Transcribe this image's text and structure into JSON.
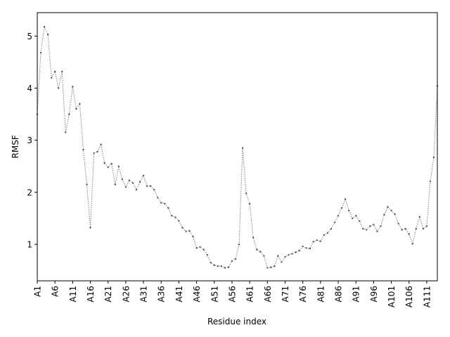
{
  "chart_data": {
    "type": "line",
    "xlabel": "Residue index",
    "ylabel": "RMSF",
    "ylim": [
      0.3,
      5.45
    ],
    "yticks": [
      1,
      2,
      3,
      4,
      5
    ],
    "grid": false,
    "series_color": "#808080",
    "x_tick_labels": [
      "A1",
      "A6",
      "A11",
      "A16",
      "A21",
      "A26",
      "A31",
      "A36",
      "A41",
      "A46",
      "A51",
      "A56",
      "A61",
      "A66",
      "A71",
      "A76",
      "A81",
      "A86",
      "A91",
      "A96",
      "A101",
      "A106",
      "A111"
    ],
    "values": [
      3.5,
      4.68,
      5.18,
      5.03,
      4.2,
      4.32,
      4.0,
      4.32,
      3.15,
      3.5,
      4.03,
      3.6,
      3.7,
      2.82,
      2.15,
      1.32,
      2.75,
      2.78,
      2.92,
      2.56,
      2.48,
      2.55,
      2.15,
      2.5,
      2.25,
      2.1,
      2.23,
      2.18,
      2.05,
      2.2,
      2.32,
      2.12,
      2.12,
      2.05,
      1.9,
      1.8,
      1.78,
      1.7,
      1.55,
      1.52,
      1.45,
      1.32,
      1.25,
      1.26,
      1.15,
      0.93,
      0.95,
      0.9,
      0.8,
      0.65,
      0.6,
      0.58,
      0.58,
      0.55,
      0.56,
      0.68,
      0.72,
      1.0,
      2.85,
      1.98,
      1.78,
      1.13,
      0.9,
      0.86,
      0.78,
      0.55,
      0.56,
      0.58,
      0.78,
      0.66,
      0.76,
      0.8,
      0.82,
      0.85,
      0.88,
      0.96,
      0.93,
      0.92,
      1.05,
      1.08,
      1.06,
      1.18,
      1.22,
      1.3,
      1.42,
      1.55,
      1.7,
      1.87,
      1.65,
      1.5,
      1.55,
      1.45,
      1.3,
      1.28,
      1.35,
      1.38,
      1.25,
      1.35,
      1.57,
      1.72,
      1.65,
      1.58,
      1.4,
      1.28,
      1.3,
      1.2,
      1.01,
      1.3,
      1.53,
      1.3,
      1.35,
      2.21,
      2.67,
      4.04
    ]
  }
}
